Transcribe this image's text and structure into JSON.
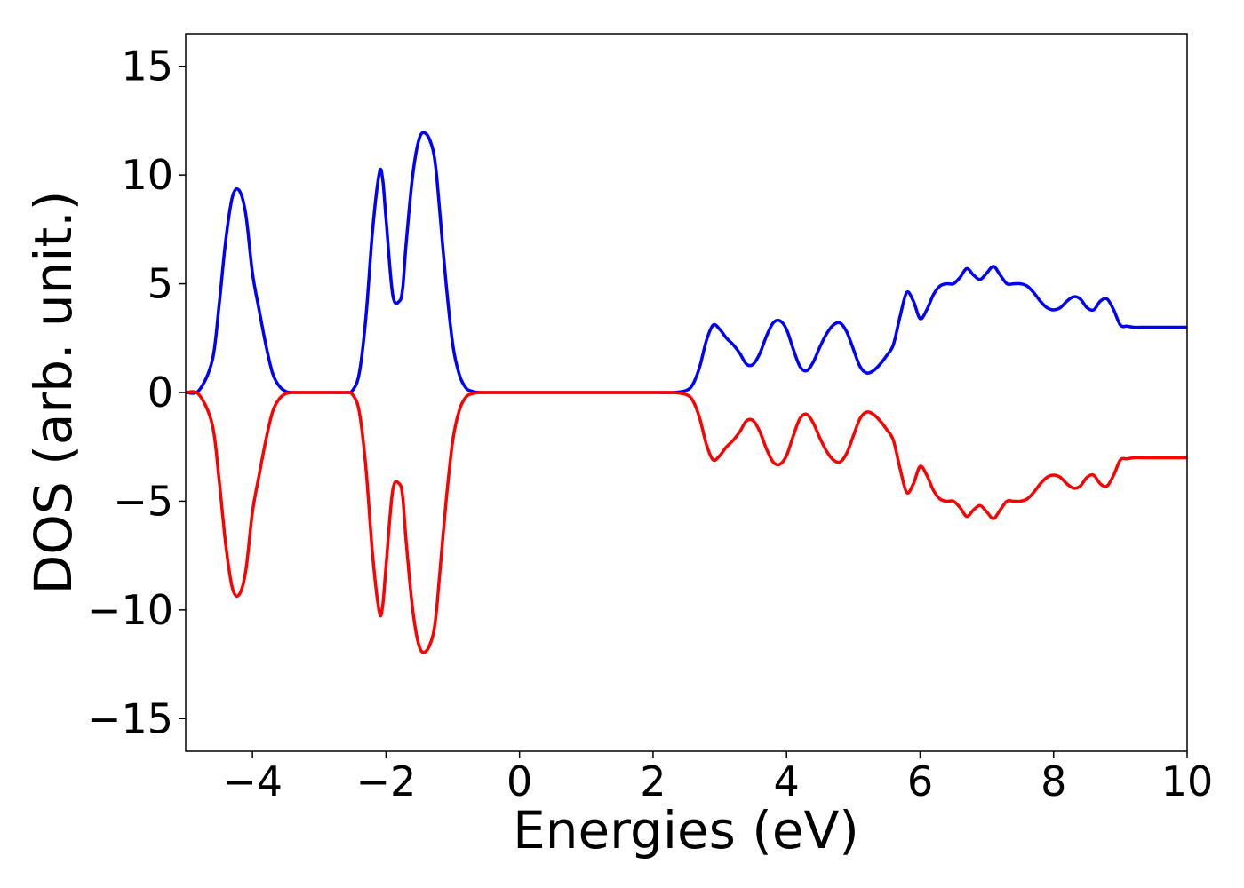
{
  "chart_data": {
    "type": "line",
    "title": "",
    "xlabel": "Energies (eV)",
    "ylabel": "DOS (arb. unit.)",
    "xlim": [
      -5,
      10
    ],
    "ylim": [
      -16.5,
      16.5
    ],
    "grid": false,
    "legend": "none",
    "x_ticks": [
      -4,
      -2,
      0,
      2,
      4,
      6,
      8,
      10
    ],
    "x_tick_labels": [
      "−4",
      "−2",
      "0",
      "2",
      "4",
      "6",
      "8",
      "10"
    ],
    "y_ticks": [
      -15,
      -10,
      -5,
      0,
      5,
      10,
      15
    ],
    "y_tick_labels": [
      "−15",
      "−10",
      "−5",
      "0",
      "5",
      "10",
      "15"
    ],
    "series": [
      {
        "color": "#0000ff",
        "x": [
          -5.0,
          -4.8,
          -4.6,
          -4.5,
          -4.4,
          -4.3,
          -4.2,
          -4.1,
          -4.0,
          -3.9,
          -3.8,
          -3.7,
          -3.6,
          -3.5,
          -3.4,
          -3.3,
          -3.2,
          -3.0,
          -2.8,
          -2.6,
          -2.5,
          -2.4,
          -2.3,
          -2.2,
          -2.1,
          -2.05,
          -2.0,
          -1.9,
          -1.8,
          -1.75,
          -1.7,
          -1.6,
          -1.5,
          -1.4,
          -1.3,
          -1.25,
          -1.2,
          -1.1,
          -1.0,
          -0.9,
          -0.8,
          -0.7,
          -0.6,
          -0.5,
          0.0,
          1.0,
          2.0,
          2.3,
          2.5,
          2.6,
          2.7,
          2.8,
          2.9,
          3.0,
          3.1,
          3.2,
          3.3,
          3.4,
          3.5,
          3.6,
          3.7,
          3.8,
          3.9,
          4.0,
          4.1,
          4.2,
          4.3,
          4.4,
          4.5,
          4.6,
          4.7,
          4.8,
          4.9,
          5.0,
          5.1,
          5.2,
          5.3,
          5.4,
          5.5,
          5.6,
          5.7,
          5.8,
          5.9,
          6.0,
          6.1,
          6.2,
          6.3,
          6.4,
          6.5,
          6.6,
          6.7,
          6.8,
          6.9,
          7.0,
          7.1,
          7.2,
          7.3,
          7.4,
          7.5,
          7.6,
          7.7,
          7.8,
          7.9,
          8.0,
          8.1,
          8.2,
          8.3,
          8.4,
          8.5,
          8.6,
          8.7,
          8.8,
          8.9,
          9.0,
          9.1,
          9.2,
          9.3,
          9.4,
          9.5,
          9.6,
          9.7,
          9.8,
          9.9,
          10.0
        ],
        "y": [
          0.0,
          0.1,
          1.5,
          4.0,
          7.0,
          9.0,
          9.3,
          8.2,
          5.5,
          3.8,
          2.2,
          0.9,
          0.3,
          0.05,
          0.0,
          0.0,
          0.0,
          0.0,
          0.0,
          0.0,
          0.1,
          0.9,
          3.5,
          7.5,
          10.1,
          9.8,
          8.0,
          4.5,
          4.2,
          4.8,
          6.8,
          10.0,
          11.7,
          11.9,
          11.2,
          10.2,
          8.5,
          5.0,
          2.2,
          0.8,
          0.2,
          0.05,
          0.0,
          0.0,
          0.0,
          0.0,
          0.0,
          0.0,
          0.1,
          0.4,
          1.2,
          2.4,
          3.1,
          2.9,
          2.5,
          2.2,
          1.8,
          1.3,
          1.3,
          1.8,
          2.6,
          3.2,
          3.3,
          2.9,
          2.0,
          1.2,
          1.0,
          1.4,
          2.1,
          2.7,
          3.1,
          3.2,
          2.8,
          2.0,
          1.2,
          0.9,
          1.0,
          1.3,
          1.7,
          2.2,
          3.5,
          4.6,
          4.2,
          3.4,
          3.8,
          4.5,
          4.9,
          5.0,
          5.0,
          5.3,
          5.7,
          5.4,
          5.2,
          5.5,
          5.8,
          5.4,
          5.0,
          5.0,
          5.0,
          4.9,
          4.6,
          4.2,
          3.9,
          3.8,
          3.9,
          4.2,
          4.4,
          4.3,
          3.9,
          3.8,
          4.2,
          4.3,
          3.8,
          3.1,
          3.05,
          3.0,
          3.0,
          3.0,
          3.0,
          3.0,
          3.0,
          3.0,
          3.0,
          3.0
        ]
      },
      {
        "color": "#ff0000",
        "x": [
          -5.0,
          -4.8,
          -4.6,
          -4.5,
          -4.4,
          -4.3,
          -4.2,
          -4.1,
          -4.0,
          -3.9,
          -3.8,
          -3.7,
          -3.6,
          -3.5,
          -3.4,
          -3.3,
          -3.2,
          -3.0,
          -2.8,
          -2.6,
          -2.5,
          -2.4,
          -2.3,
          -2.2,
          -2.1,
          -2.05,
          -2.0,
          -1.9,
          -1.8,
          -1.75,
          -1.7,
          -1.6,
          -1.5,
          -1.4,
          -1.3,
          -1.25,
          -1.2,
          -1.1,
          -1.0,
          -0.9,
          -0.8,
          -0.7,
          -0.6,
          -0.5,
          0.0,
          1.0,
          2.0,
          2.3,
          2.5,
          2.6,
          2.7,
          2.8,
          2.9,
          3.0,
          3.1,
          3.2,
          3.3,
          3.4,
          3.5,
          3.6,
          3.7,
          3.8,
          3.9,
          4.0,
          4.1,
          4.2,
          4.3,
          4.4,
          4.5,
          4.6,
          4.7,
          4.8,
          4.9,
          5.0,
          5.1,
          5.2,
          5.3,
          5.4,
          5.5,
          5.6,
          5.7,
          5.8,
          5.9,
          6.0,
          6.1,
          6.2,
          6.3,
          6.4,
          6.5,
          6.6,
          6.7,
          6.8,
          6.9,
          7.0,
          7.1,
          7.2,
          7.3,
          7.4,
          7.5,
          7.6,
          7.7,
          7.8,
          7.9,
          8.0,
          8.1,
          8.2,
          8.3,
          8.4,
          8.5,
          8.6,
          8.7,
          8.8,
          8.9,
          9.0,
          9.1,
          9.2,
          9.3,
          9.4,
          9.5,
          9.6,
          9.7,
          9.8,
          9.9,
          10.0
        ],
        "y": [
          0.0,
          -0.1,
          -1.5,
          -4.0,
          -7.0,
          -9.0,
          -9.3,
          -8.2,
          -5.5,
          -3.8,
          -2.2,
          -0.9,
          -0.3,
          -0.05,
          0.0,
          0.0,
          0.0,
          0.0,
          0.0,
          0.0,
          -0.1,
          -0.9,
          -3.5,
          -7.5,
          -10.1,
          -9.8,
          -8.0,
          -4.5,
          -4.2,
          -4.8,
          -6.8,
          -10.0,
          -11.7,
          -11.9,
          -11.2,
          -10.2,
          -8.5,
          -5.0,
          -2.2,
          -0.8,
          -0.2,
          -0.05,
          0.0,
          0.0,
          0.0,
          0.0,
          0.0,
          0.0,
          -0.1,
          -0.4,
          -1.2,
          -2.4,
          -3.1,
          -2.9,
          -2.5,
          -2.2,
          -1.8,
          -1.3,
          -1.3,
          -1.8,
          -2.6,
          -3.2,
          -3.3,
          -2.9,
          -2.0,
          -1.2,
          -1.0,
          -1.4,
          -2.1,
          -2.7,
          -3.1,
          -3.2,
          -2.8,
          -2.0,
          -1.2,
          -0.9,
          -1.0,
          -1.3,
          -1.7,
          -2.2,
          -3.5,
          -4.6,
          -4.2,
          -3.4,
          -3.8,
          -4.5,
          -4.9,
          -5.0,
          -5.0,
          -5.3,
          -5.7,
          -5.4,
          -5.2,
          -5.5,
          -5.8,
          -5.4,
          -5.0,
          -5.0,
          -5.0,
          -4.9,
          -4.6,
          -4.2,
          -3.9,
          -3.8,
          -3.9,
          -4.2,
          -4.4,
          -4.3,
          -3.9,
          -3.8,
          -4.2,
          -4.3,
          -3.8,
          -3.1,
          -3.05,
          -3.0,
          -3.0,
          -3.0,
          -3.0,
          -3.0,
          -3.0,
          -3.0,
          -3.0,
          -3.0
        ]
      }
    ]
  }
}
